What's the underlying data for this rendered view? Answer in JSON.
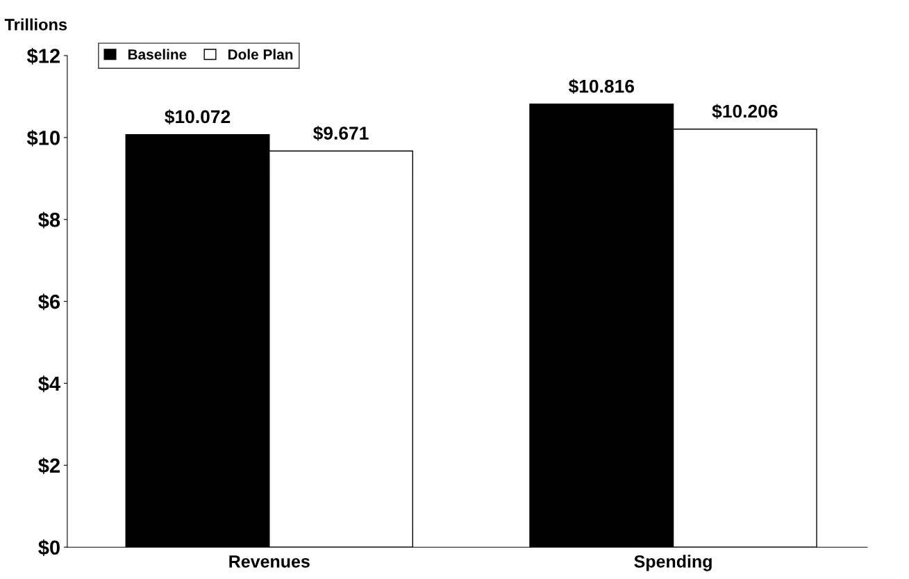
{
  "chart_data": {
    "type": "bar",
    "ylabel": "Trillions",
    "categories": [
      "Revenues",
      "Spending"
    ],
    "series": [
      {
        "name": "Baseline",
        "color": "#000000",
        "values": [
          10.072,
          10.816
        ],
        "value_labels": [
          "$10.072",
          "$10.816"
        ]
      },
      {
        "name": "Dole Plan",
        "color": "#ffffff",
        "values": [
          9.671,
          10.206
        ],
        "value_labels": [
          "$9.671",
          "$10.206"
        ]
      }
    ],
    "ylim": [
      0,
      12
    ],
    "yticks": [
      {
        "value": 0,
        "label": "$0"
      },
      {
        "value": 2,
        "label": "$2"
      },
      {
        "value": 4,
        "label": "$4"
      },
      {
        "value": 6,
        "label": "$6"
      },
      {
        "value": 8,
        "label": "$8"
      },
      {
        "value": 10,
        "label": "$10"
      },
      {
        "value": 12,
        "label": "$12"
      }
    ],
    "grid": false,
    "legend": "top left"
  }
}
